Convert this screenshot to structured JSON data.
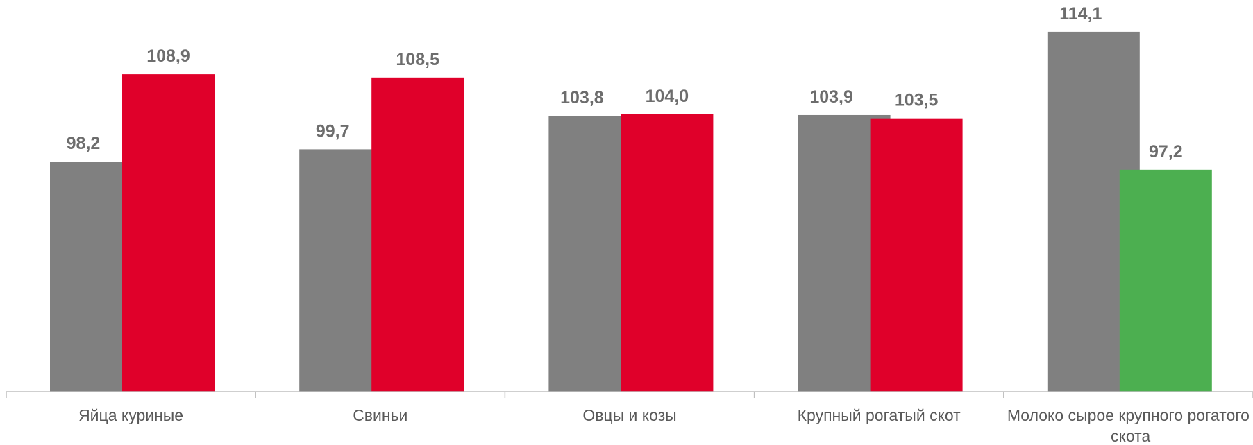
{
  "chart_data": {
    "type": "bar",
    "categories": [
      "Яйца куриные",
      "Свиньи",
      "Овцы и козы",
      "Крупный рогатый скот",
      "Молоко сырое крупного рогатого скота"
    ],
    "series": [
      {
        "color": "#808080",
        "values": [
          98.2,
          99.7,
          103.8,
          103.9,
          114.1
        ],
        "value_labels": [
          "98,2",
          "99,7",
          "103,8",
          "103,9",
          "114,1"
        ]
      },
      {
        "colors": [
          "#e0002a",
          "#e0002a",
          "#e0002a",
          "#e0002a",
          "#4caf50"
        ],
        "values": [
          108.9,
          108.5,
          104.0,
          103.5,
          97.2
        ],
        "value_labels": [
          "108,9",
          "108,5",
          "104,0",
          "103,5",
          "97,2"
        ]
      }
    ],
    "ylim": [
      70,
      118
    ]
  }
}
